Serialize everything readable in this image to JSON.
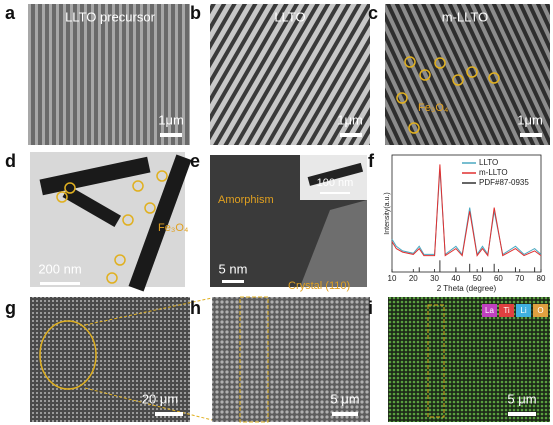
{
  "panels": [
    {
      "label": "a",
      "title": "LLTO precursor",
      "scale_bar": "1μm"
    },
    {
      "label": "b",
      "title": "LLTO",
      "scale_bar": "1μm"
    },
    {
      "label": "c",
      "title": "m-LLTO",
      "annotation": "Fe₃O₄",
      "scale_bar": "1μm"
    },
    {
      "label": "d",
      "annotation": "Fe₃O₄",
      "scale_bar": "200 nm"
    },
    {
      "label": "e",
      "annotations": [
        "Amorphism",
        "Crystal (110)"
      ],
      "inset_scale_bar": "100 nm",
      "scale_bar": "5 nm"
    },
    {
      "label": "f",
      "chart_data": {
        "type": "line",
        "y_label": "Intensity(a.u.)",
        "x_label": "2 Theta (degree)",
        "xlim": [
          10,
          80
        ],
        "xticks": [
          10,
          20,
          30,
          40,
          50,
          60,
          70,
          80
        ],
        "ylim": [
          0,
          100
        ],
        "series": [
          {
            "name": "LLTO",
            "color": "#4aa8c0",
            "x": [
              10,
              12,
              15,
              20,
              22.8,
              25,
              30,
              32.5,
              35,
              40,
              43,
              46.5,
              50,
              52.5,
              55,
              58,
              62,
              68,
              72,
              77,
              80
            ],
            "values": [
              28,
              22,
              18,
              16,
              22,
              15,
              15,
              88,
              15,
              22,
              15,
              55,
              15,
              22,
              15,
              52,
              15,
              22,
              15,
              20,
              15
            ]
          },
          {
            "name": "m-LLTO",
            "color": "#e03030",
            "x": [
              10,
              12,
              15,
              20,
              22.8,
              25,
              30,
              32.5,
              35,
              40,
              43,
              46.5,
              50,
              52.5,
              55,
              58,
              62,
              68,
              72,
              77,
              80
            ],
            "values": [
              26,
              20,
              17,
              15,
              20,
              14,
              14,
              92,
              14,
              20,
              14,
              52,
              14,
              20,
              14,
              55,
              14,
              20,
              14,
              18,
              14
            ]
          },
          {
            "name": "PDF#87-0935",
            "color": "#333333",
            "mark": "stick",
            "x": [
              22.8,
              32.5,
              40,
              46.5,
              52.5,
              58,
              68,
              77
            ],
            "values": [
              4,
              10,
              4,
              7,
              4,
              7,
              4,
              4
            ]
          }
        ]
      }
    },
    {
      "label": "g",
      "scale_bar": "20 μm"
    },
    {
      "label": "h",
      "scale_bar": "5 μm"
    },
    {
      "label": "i",
      "scale_bar": "5 μm",
      "legend": [
        "La",
        "Ti",
        "Li",
        "O"
      ]
    }
  ]
}
